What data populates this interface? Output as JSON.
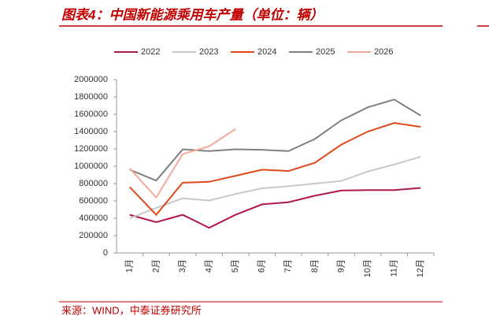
{
  "chart_data": {
    "type": "line",
    "title": "图表4：中国新能源乘用车产量（单位：辆）",
    "source": "来源：WIND，中泰证券研究所",
    "categories": [
      "1月",
      "2月",
      "3月",
      "4月",
      "5月",
      "6月",
      "7月",
      "8月",
      "9月",
      "10月",
      "11月",
      "12月"
    ],
    "series": [
      {
        "name": "2022",
        "color": "#b0184a",
        "values": [
          440000,
          355000,
          440000,
          290000,
          440000,
          560000,
          585000,
          660000,
          720000,
          725000,
          725000,
          750000
        ]
      },
      {
        "name": "2023",
        "color": "#c8c8c8",
        "values": [
          400000,
          520000,
          630000,
          605000,
          680000,
          745000,
          770000,
          800000,
          830000,
          940000,
          1020000,
          1110000
        ]
      },
      {
        "name": "2024",
        "color": "#e04a1a",
        "values": [
          760000,
          440000,
          810000,
          820000,
          890000,
          960000,
          945000,
          1040000,
          1250000,
          1400000,
          1500000,
          1455000
        ]
      },
      {
        "name": "2025",
        "color": "#808080",
        "values": [
          960000,
          835000,
          1195000,
          1175000,
          1195000,
          1190000,
          1175000,
          1315000,
          1530000,
          1680000,
          1770000,
          1585000
        ]
      },
      {
        "name": "2026",
        "color": "#f4a99a",
        "values": [
          975000,
          640000,
          1140000,
          1230000,
          1430000,
          null,
          null,
          null,
          null,
          null,
          null,
          null
        ]
      }
    ],
    "ylim": [
      0,
      2000000
    ],
    "yticks": [
      0,
      200000,
      400000,
      600000,
      800000,
      1000000,
      1200000,
      1400000,
      1600000,
      1800000,
      2000000
    ],
    "legend": "top"
  }
}
